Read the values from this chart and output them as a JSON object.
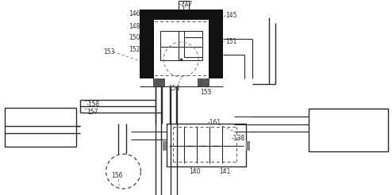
{
  "bg_color": "#ffffff",
  "line_color": "#2a2a2a",
  "thick_color": "#111111",
  "label_color": "#333333",
  "fig_width": 4.94,
  "fig_height": 2.46,
  "dpi": 100
}
